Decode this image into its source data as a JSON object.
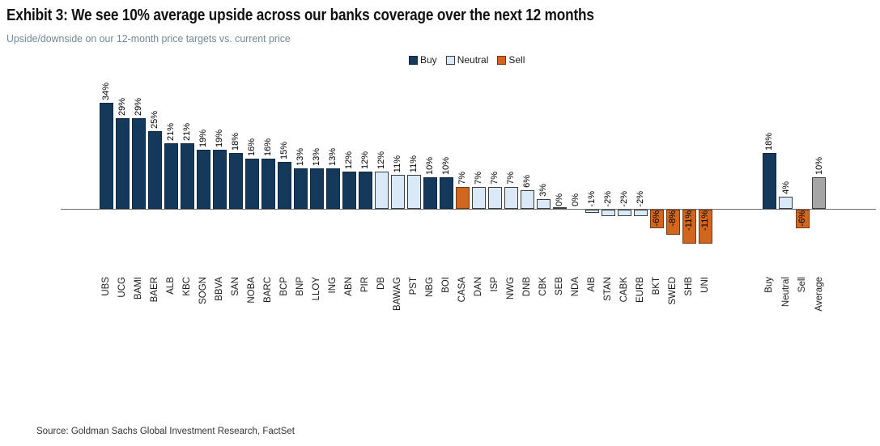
{
  "header": {
    "title": "Exhibit 3: We see 10% average upside across our banks coverage over the next 12 months",
    "subtitle": "Upside/downside on our 12-month price targets vs. current price"
  },
  "legend": [
    {
      "label": "Buy",
      "key": "buy"
    },
    {
      "label": "Neutral",
      "key": "neutral"
    },
    {
      "label": "Sell",
      "key": "sell"
    }
  ],
  "footer": {
    "source": "Source: Goldman Sachs Global Investment Research, FactSet"
  },
  "colors": {
    "buy": "#14395B",
    "neutral": "#D9E9F8",
    "sell": "#D2661F",
    "average": "#A6A6A6",
    "buy_border": "#0E2A44",
    "neutral_border": "#3D3D3D",
    "sell_border": "#70390E",
    "average_border": "#3D3D3D",
    "axis": "#6B6B6B"
  },
  "chart_data": {
    "type": "bar",
    "title": "Exhibit 3: We see 10% average upside across our banks coverage over the next 12 months",
    "subtitle": "Upside/downside on our 12-month price targets vs. current price",
    "unit": "%",
    "ylim": [
      -15,
      38
    ],
    "grid": false,
    "legend_position": "top-center",
    "legend_entries": [
      "Buy",
      "Neutral",
      "Sell"
    ],
    "categories": [
      "UBS",
      "UCG",
      "BAMI",
      "BAER",
      "ALB",
      "KBC",
      "SOGN",
      "BBVA",
      "SAN",
      "NOBA",
      "BARC",
      "BCP",
      "BNP",
      "LLOY",
      "ING",
      "ABN",
      "PIR",
      "DB",
      "BAWAG",
      "PST",
      "NBG",
      "BOI",
      "CASA",
      "DAN",
      "ISP",
      "NWG",
      "DNB",
      "CBK",
      "SEB",
      "NDA",
      "AIB",
      "STAN",
      "CABK",
      "EURB",
      "BKT",
      "SWED",
      "SHB",
      "UNI"
    ],
    "values": [
      34,
      29,
      29,
      25,
      21,
      21,
      19,
      19,
      18,
      16,
      16,
      15,
      13,
      13,
      13,
      12,
      12,
      12,
      11,
      11,
      10,
      10,
      7,
      7,
      7,
      7,
      6,
      3,
      0,
      0,
      -1,
      -2,
      -2,
      -2,
      -6,
      -8,
      -11,
      -11
    ],
    "ratings": [
      "buy",
      "buy",
      "buy",
      "buy",
      "buy",
      "buy",
      "buy",
      "buy",
      "buy",
      "buy",
      "buy",
      "buy",
      "buy",
      "buy",
      "buy",
      "buy",
      "buy",
      "neutral",
      "neutral",
      "neutral",
      "buy",
      "buy",
      "sell",
      "neutral",
      "neutral",
      "neutral",
      "neutral",
      "neutral",
      "neutral",
      "neutral",
      "neutral",
      "neutral",
      "neutral",
      "neutral",
      "sell",
      "sell",
      "sell",
      "sell"
    ],
    "zero_bar_hidden": [
      "NDA"
    ],
    "summary": {
      "categories": [
        "Buy",
        "Neutral",
        "Sell",
        "Average"
      ],
      "values": [
        18,
        4,
        -6,
        10
      ],
      "ratings": [
        "buy",
        "neutral",
        "sell",
        "average"
      ]
    }
  }
}
